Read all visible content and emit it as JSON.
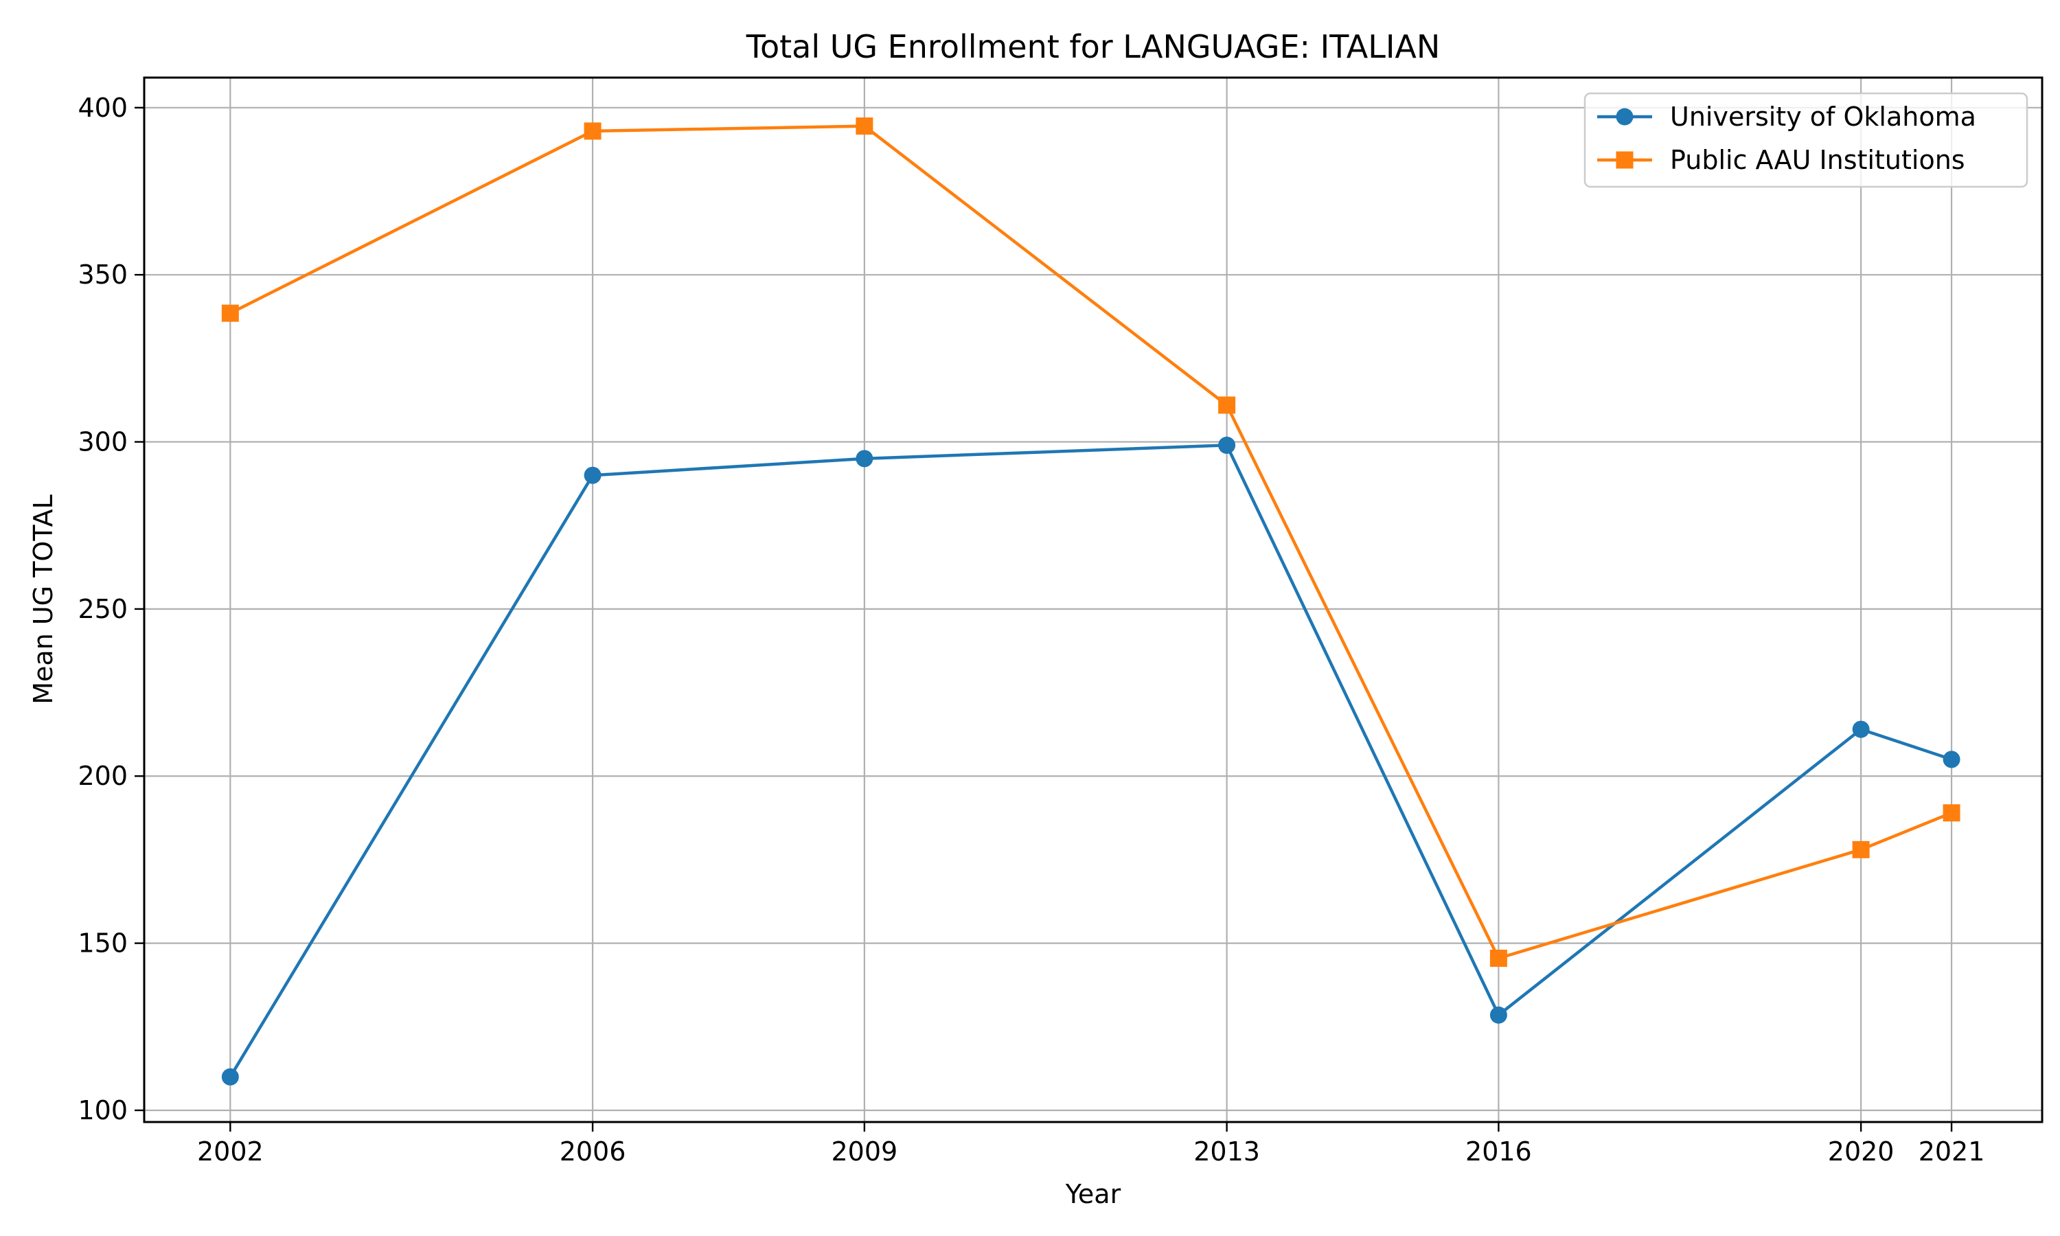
{
  "chart_data": {
    "type": "line",
    "title": "Total UG Enrollment for LANGUAGE: ITALIAN",
    "xlabel": "Year",
    "ylabel": "Mean UG TOTAL",
    "x": [
      2002,
      2006,
      2009,
      2013,
      2016,
      2020,
      2021
    ],
    "x_tick_labels": [
      "2002",
      "2006",
      "2009",
      "2013",
      "2016",
      "2020",
      "2021"
    ],
    "y_ticks": [
      100,
      150,
      200,
      250,
      300,
      350,
      400
    ],
    "y_tick_labels": [
      "100",
      "150",
      "200",
      "250",
      "300",
      "350",
      "400"
    ],
    "xlim": [
      2001.05,
      2022.0
    ],
    "ylim": [
      96.5,
      409.0
    ],
    "grid": true,
    "legend_position": "top-right",
    "series": [
      {
        "name": "University of Oklahoma",
        "color": "#1f77b4",
        "marker": "circle",
        "values": [
          110,
          290,
          295,
          299,
          128.5,
          214,
          205
        ]
      },
      {
        "name": "Public AAU Institutions",
        "color": "#ff7f0e",
        "marker": "square",
        "values": [
          338.5,
          393,
          394.5,
          311,
          145.5,
          178,
          189
        ]
      }
    ]
  }
}
